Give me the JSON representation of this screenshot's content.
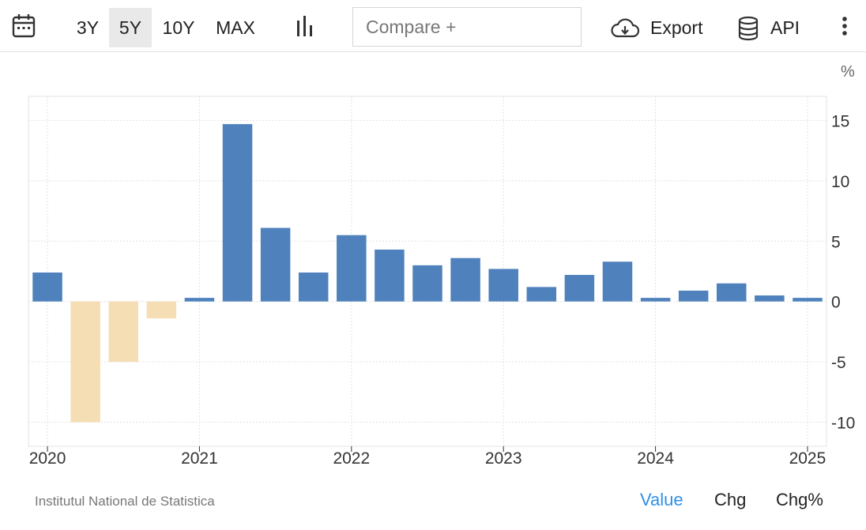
{
  "toolbar": {
    "icons": {
      "calendar": "calendar-icon",
      "chart_type": "bar-chart-icon",
      "export": "cloud-download-icon",
      "api": "database-icon",
      "more": "vertical-dots-icon"
    },
    "ranges": [
      "3Y",
      "5Y",
      "10Y",
      "MAX"
    ],
    "active_range": "5Y",
    "compare_placeholder": "Compare +",
    "export_label": "Export",
    "api_label": "API"
  },
  "unit_label": "%",
  "source": "Institutul National de Statistica",
  "tabs": {
    "value": "Value",
    "chg": "Chg",
    "chg_pct": "Chg%",
    "active": "Value"
  },
  "colors": {
    "positive": "#4f81bd",
    "negative": "#f5deb3",
    "active_tab": "#2f8fe8",
    "grid": "#e3e3e3"
  },
  "chart_data": {
    "type": "bar",
    "title": "",
    "xlabel": "",
    "ylabel": "%",
    "ylim": [
      -12,
      17
    ],
    "xlim": [
      2019.875,
      2025.125
    ],
    "grid": true,
    "y_axis_position": "right",
    "yticks": [
      15,
      10,
      5,
      0,
      -5,
      -10
    ],
    "xticks": [
      "2020",
      "2021",
      "2022",
      "2023",
      "2024",
      "2025"
    ],
    "x": [
      2020.0,
      2020.25,
      2020.5,
      2020.75,
      2021.0,
      2021.25,
      2021.5,
      2021.75,
      2022.0,
      2022.25,
      2022.5,
      2022.75,
      2023.0,
      2023.25,
      2023.5,
      2023.75,
      2024.0,
      2024.25,
      2024.5,
      2024.75,
      2025.0
    ],
    "values": [
      2.4,
      -10.0,
      -5.0,
      -1.4,
      0.3,
      14.7,
      6.1,
      2.4,
      5.5,
      4.3,
      3.0,
      3.6,
      2.7,
      1.2,
      2.2,
      3.3,
      0.3,
      0.9,
      1.5,
      0.5,
      0.3
    ]
  }
}
